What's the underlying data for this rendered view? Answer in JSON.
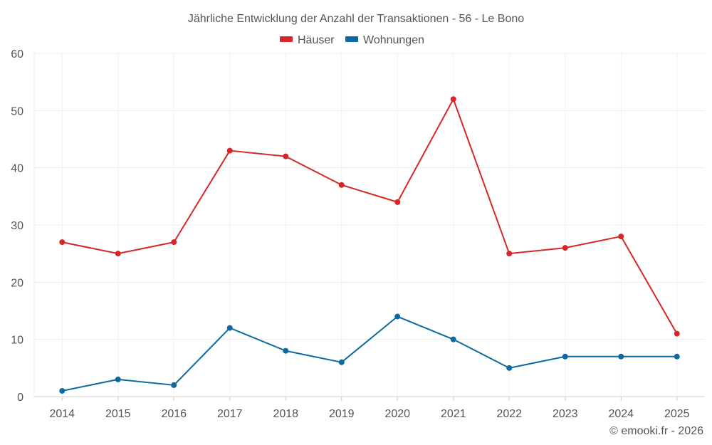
{
  "chart_data": {
    "type": "line",
    "title": "Jährliche Entwicklung der Anzahl der Transaktionen - 56 - Le Bono",
    "categories": [
      "2014",
      "2015",
      "2016",
      "2017",
      "2018",
      "2019",
      "2020",
      "2021",
      "2022",
      "2023",
      "2024",
      "2025"
    ],
    "series": [
      {
        "name": "Häuser",
        "color": "#d62728",
        "values": [
          27,
          25,
          27,
          43,
          42,
          37,
          34,
          52,
          25,
          26,
          28,
          11
        ]
      },
      {
        "name": "Wohnungen",
        "color": "#0b6aa2",
        "values": [
          1,
          3,
          2,
          12,
          8,
          6,
          14,
          10,
          5,
          7,
          7,
          7
        ]
      }
    ],
    "ylim": [
      0,
      60
    ],
    "yticks": [
      0,
      10,
      20,
      30,
      40,
      50,
      60
    ],
    "grid": true,
    "legend_position": "top-center"
  },
  "credit": "© emooki.fr - 2026"
}
